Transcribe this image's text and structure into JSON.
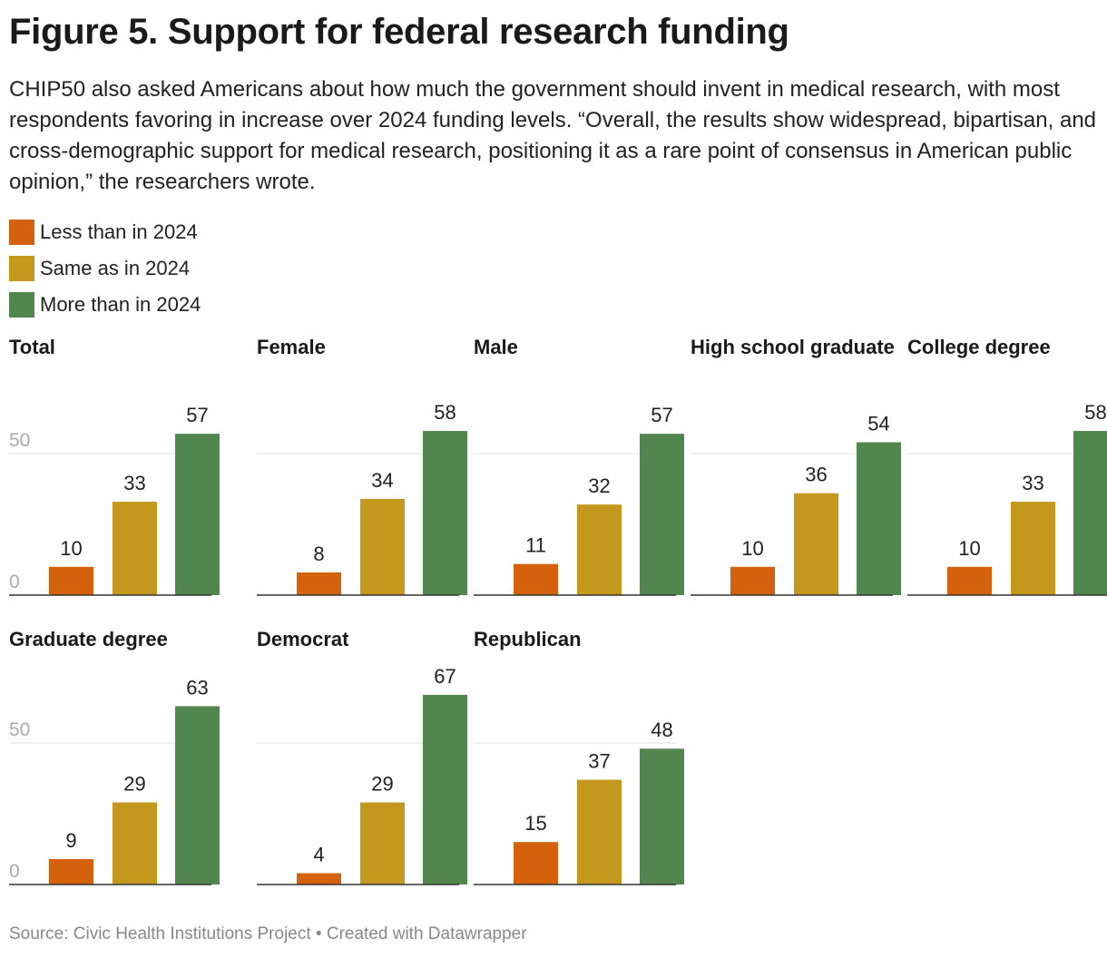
{
  "title": "Figure 5. Support for federal research funding",
  "subtitle": "CHIP50 also asked Americans about how much the government should invent in medical research, with most respondents favoring in increase over 2024 funding levels. “Overall, the results show widespread, bipartisan, and cross-demographic support for medical research, positioning it as a rare point of consensus in American public opinion,” the researchers wrote.",
  "legend": [
    {
      "label": "Less than in 2024",
      "color": "#d4610c"
    },
    {
      "label": "Same as in 2024",
      "color": "#c4981d"
    },
    {
      "label": "More than in 2024",
      "color": "#51874e"
    }
  ],
  "footer": "Source: Civic Health Institutions Project • Created with Datawrapper",
  "chart_data": {
    "type": "bar",
    "categories": [
      "Less than in 2024",
      "Same as in 2024",
      "More than in 2024"
    ],
    "colors": [
      "#d4610c",
      "#c4981d",
      "#51874e"
    ],
    "ylim": [
      0,
      70
    ],
    "yticks": [
      0,
      50
    ],
    "panels": [
      {
        "title": "Total",
        "values": [
          10,
          33,
          57
        ]
      },
      {
        "title": "Female",
        "values": [
          8,
          34,
          58
        ]
      },
      {
        "title": "Male",
        "values": [
          11,
          32,
          57
        ]
      },
      {
        "title": "High school graduate",
        "values": [
          10,
          36,
          54
        ]
      },
      {
        "title": "College degree",
        "values": [
          10,
          33,
          58
        ]
      },
      {
        "title": "Graduate degree",
        "values": [
          9,
          29,
          63
        ]
      },
      {
        "title": "Democrat",
        "values": [
          4,
          29,
          67
        ]
      },
      {
        "title": "Republican",
        "values": [
          15,
          37,
          48
        ]
      }
    ]
  }
}
